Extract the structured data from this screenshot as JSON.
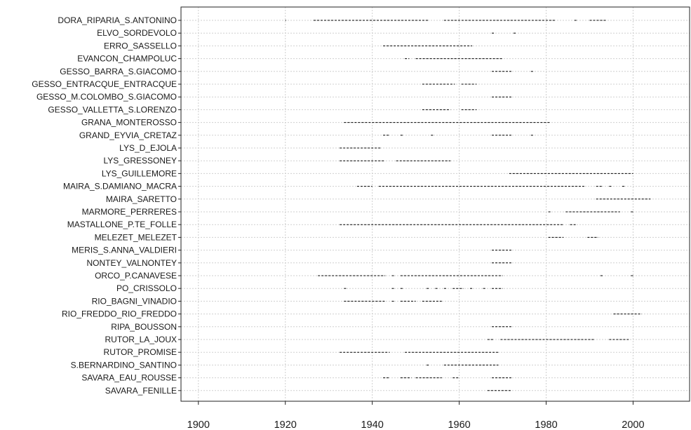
{
  "chart_data": {
    "type": "timeline",
    "title": "",
    "xlabel": "",
    "ylabel": "",
    "xlim": [
      1896,
      2013
    ],
    "x_ticks": [
      1900,
      1920,
      1940,
      1960,
      1980,
      2000
    ],
    "grid": true,
    "colors": {
      "marks": "#000000",
      "grid": "#cfcfcf",
      "frame": "#222222"
    },
    "stations": [
      {
        "name": "DORA_RIPARIA_S.ANTONINO",
        "periods": [
          [
            1920,
            1920.2
          ],
          [
            1926.5,
            1953
          ],
          [
            1956.5,
            1982
          ],
          [
            1986.5,
            1987
          ],
          [
            1990,
            1994
          ]
        ]
      },
      {
        "name": "ELVO_SORDEVOLO",
        "periods": [
          [
            1967.5,
            1968
          ],
          [
            1972.5,
            1973
          ]
        ]
      },
      {
        "name": "ERRO_SASSELLO",
        "periods": [
          [
            1942.5,
            1963
          ]
        ]
      },
      {
        "name": "EVANCON_CHAMPOLUC",
        "periods": [
          [
            1947.5,
            1948.5
          ],
          [
            1950,
            1970
          ]
        ]
      },
      {
        "name": "GESSO_BARRA_S.GIACOMO",
        "periods": [
          [
            1967.5,
            1972
          ],
          [
            1976.5,
            1977
          ]
        ]
      },
      {
        "name": "GESSO_ENTRACQUE_ENTRACQUE",
        "periods": [
          [
            1951.5,
            1959
          ],
          [
            1960.5,
            1964
          ]
        ]
      },
      {
        "name": "GESSO_M.COLOMBO_S.GIACOMO",
        "periods": [
          [
            1967.5,
            1972
          ]
        ]
      },
      {
        "name": "GESSO_VALLETTA_S.LORENZO",
        "periods": [
          [
            1951.5,
            1958
          ],
          [
            1960.5,
            1964
          ]
        ]
      },
      {
        "name": "GRANA_MONTEROSSO",
        "periods": [
          [
            1933.5,
            1981
          ]
        ]
      },
      {
        "name": "GRAND_EYVIA_CRETAZ",
        "periods": [
          [
            1942.5,
            1944
          ],
          [
            1946.5,
            1947
          ],
          [
            1953.5,
            1954
          ],
          [
            1967.5,
            1972
          ],
          [
            1976.5,
            1977
          ]
        ]
      },
      {
        "name": "LYS_D_EJOLA",
        "periods": [
          [
            1932.5,
            1942
          ]
        ]
      },
      {
        "name": "LYS_GRESSONEY",
        "periods": [
          [
            1932.5,
            1943
          ],
          [
            1945.5,
            1958
          ]
        ]
      },
      {
        "name": "LYS_GUILLEMORE",
        "periods": [
          [
            1971.5,
            2000
          ]
        ]
      },
      {
        "name": "MAIRA_S.DAMIANO_MACRA",
        "periods": [
          [
            1936.5,
            1940
          ],
          [
            1941.5,
            1989
          ],
          [
            1991.5,
            1993
          ],
          [
            1994.5,
            1995
          ],
          [
            1997.5,
            1998
          ]
        ]
      },
      {
        "name": "MAIRA_SARETTO",
        "periods": [
          [
            1991.5,
            2004
          ]
        ]
      },
      {
        "name": "MARMORE_PERRERES",
        "periods": [
          [
            1980.5,
            1981
          ],
          [
            1984.5,
            1997
          ],
          [
            1999.5,
            2000
          ]
        ]
      },
      {
        "name": "MASTALLONE_P.TE_FOLLE",
        "periods": [
          [
            1932.5,
            1984
          ],
          [
            1985.5,
            1987
          ]
        ]
      },
      {
        "name": "MELEZET_MELEZET",
        "periods": [
          [
            1980.5,
            1984
          ],
          [
            1989.5,
            1992
          ]
        ]
      },
      {
        "name": "MERIS_S.ANNA_VALDIERI",
        "periods": [
          [
            1967.5,
            1972
          ]
        ]
      },
      {
        "name": "NONTEY_VALNONTEY",
        "periods": [
          [
            1967.5,
            1972
          ]
        ]
      },
      {
        "name": "ORCO_P.CANAVESE",
        "periods": [
          [
            1927.5,
            1943
          ],
          [
            1944.5,
            1945
          ],
          [
            1946.5,
            1970
          ],
          [
            1992.5,
            1993
          ],
          [
            1999.5,
            2000
          ]
        ]
      },
      {
        "name": "PO_CRISSOLO",
        "periods": [
          [
            1933.5,
            1934
          ],
          [
            1944.5,
            1945
          ],
          [
            1946.5,
            1947
          ],
          [
            1952.5,
            1953
          ],
          [
            1954.5,
            1955
          ],
          [
            1956.5,
            1957
          ],
          [
            1958.5,
            1961
          ],
          [
            1962.5,
            1963
          ],
          [
            1965.5,
            1966
          ],
          [
            1967.5,
            1970
          ]
        ]
      },
      {
        "name": "RIO_BAGNI_VINADIO",
        "periods": [
          [
            1933.5,
            1943
          ],
          [
            1944.5,
            1945
          ],
          [
            1946.5,
            1950
          ],
          [
            1951.5,
            1956
          ]
        ]
      },
      {
        "name": "RIO_FREDDO_RIO_FREDDO",
        "periods": [
          [
            1995.5,
            2002
          ]
        ]
      },
      {
        "name": "RIPA_BOUSSON",
        "periods": [
          [
            1967.5,
            1972
          ]
        ]
      },
      {
        "name": "RUTOR_LA_JOUX",
        "periods": [
          [
            1966.5,
            1968
          ],
          [
            1969.5,
            1991
          ],
          [
            1994.5,
            1999
          ]
        ]
      },
      {
        "name": "RUTOR_PROMISE",
        "periods": [
          [
            1932.5,
            1944
          ],
          [
            1947.5,
            1969
          ]
        ]
      },
      {
        "name": "S.BERNARDINO_SANTINO",
        "periods": [
          [
            1952.5,
            1953
          ],
          [
            1956.5,
            1969
          ]
        ]
      },
      {
        "name": "SAVARA_EAU_ROUSSE",
        "periods": [
          [
            1942.5,
            1944
          ],
          [
            1946.5,
            1949
          ],
          [
            1950,
            1956
          ],
          [
            1958.5,
            1960
          ],
          [
            1967.5,
            1972
          ]
        ]
      },
      {
        "name": "SAVARA_FENILLE",
        "periods": [
          [
            1966.5,
            1972
          ]
        ]
      }
    ]
  }
}
